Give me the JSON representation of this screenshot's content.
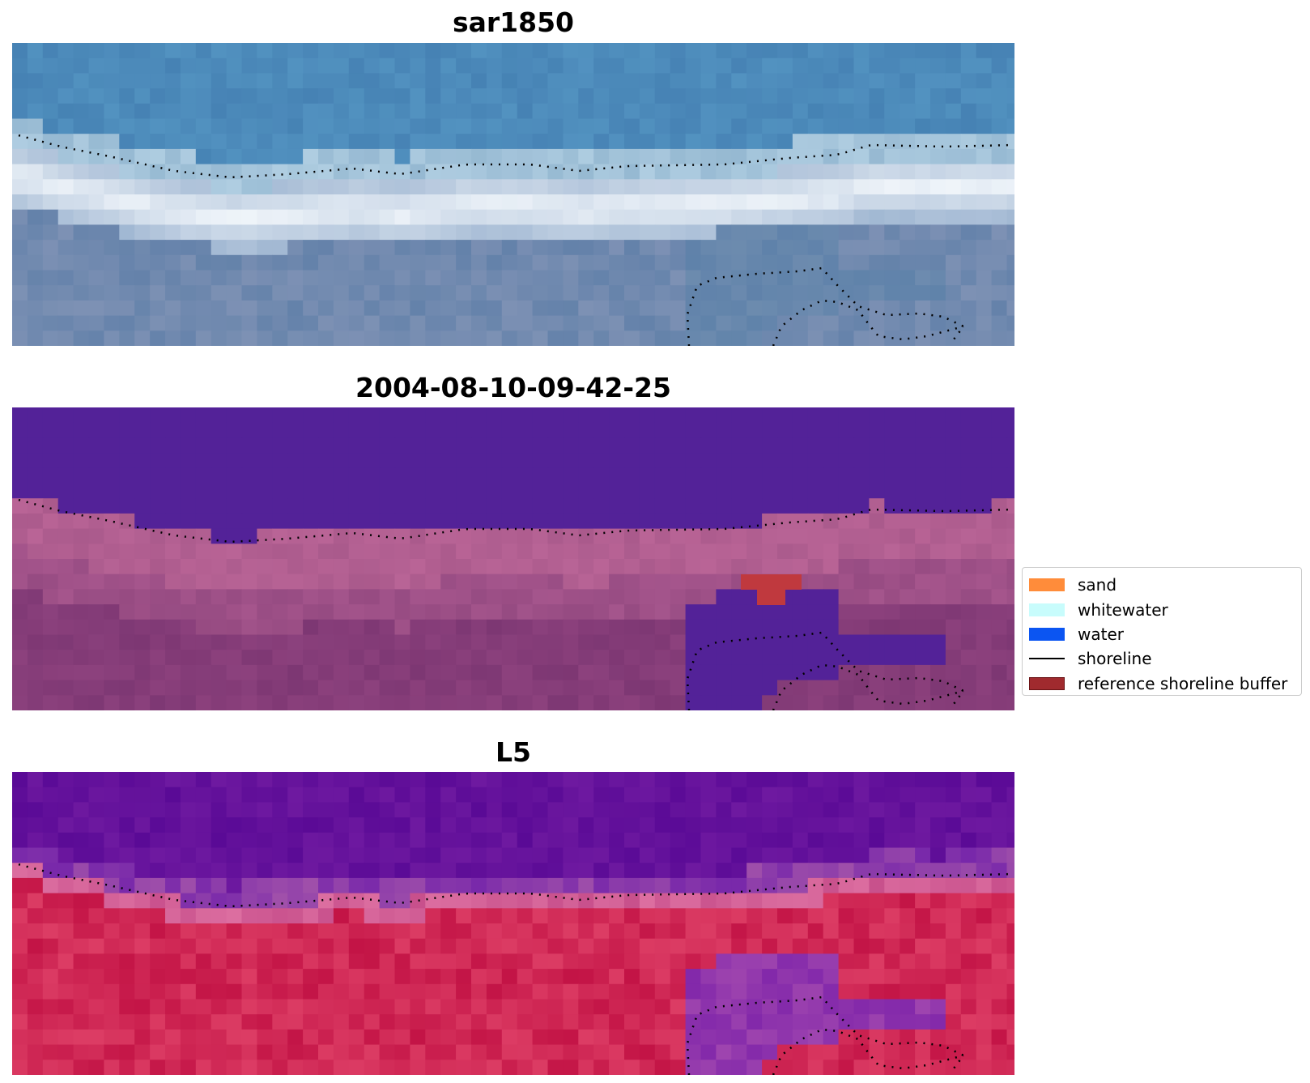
{
  "panels": [
    {
      "title": "sar1850",
      "style": "rgb"
    },
    {
      "title": "2004-08-10-09-42-25",
      "style": "classified"
    },
    {
      "title": "L5",
      "style": "index"
    }
  ],
  "legend": {
    "items": [
      {
        "label": "sand",
        "kind": "patch",
        "color": "#ff8c3a"
      },
      {
        "label": "whitewater",
        "kind": "patch",
        "color": "#c8fcfc"
      },
      {
        "label": "water",
        "kind": "patch",
        "color": "#0b55f2"
      },
      {
        "label": "shoreline",
        "kind": "line",
        "color": "#000000"
      },
      {
        "label": "reference shoreline buffer",
        "kind": "patch",
        "color": "#a02a2e",
        "edge": "#6b1316"
      }
    ]
  }
}
